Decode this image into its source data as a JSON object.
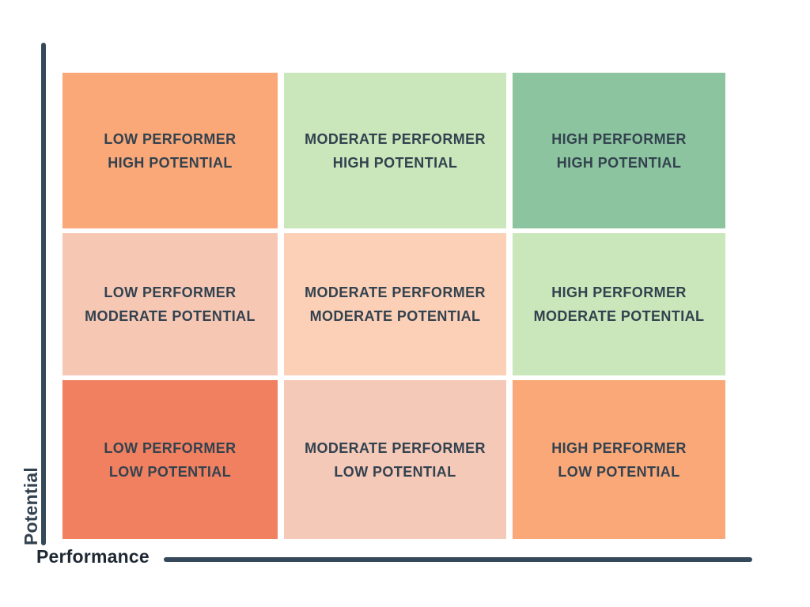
{
  "axes": {
    "x_label": "Performance",
    "y_label": "Potential"
  },
  "colors": {
    "axis_line": "#35495a",
    "x_label_color": "#1e2833",
    "y_label_color": "#33424f",
    "cell_text": "#33424f",
    "background": "#ffffff"
  },
  "matrix": {
    "rows": 3,
    "cols": 3,
    "row_order_top_to_bottom": [
      "HIGH POTENTIAL",
      "MODERATE POTENTIAL",
      "LOW POTENTIAL"
    ],
    "col_order_left_to_right": [
      "LOW PERFORMER",
      "MODERATE PERFORMER",
      "HIGH PERFORMER"
    ],
    "cells": [
      {
        "line1": "LOW PERFORMER",
        "line2": "HIGH POTENTIAL",
        "color": "#faa878"
      },
      {
        "line1": "MODERATE PERFORMER",
        "line2": "HIGH POTENTIAL",
        "color": "#c9e7ba"
      },
      {
        "line1": "HIGH PERFORMER",
        "line2": "HIGH POTENTIAL",
        "color": "#8cc49f"
      },
      {
        "line1": "LOW PERFORMER",
        "line2": "MODERATE POTENTIAL",
        "color": "#f6c8b4"
      },
      {
        "line1": "MODERATE PERFORMER",
        "line2": "MODERATE POTENTIAL",
        "color": "#fbd0b6"
      },
      {
        "line1": "HIGH PERFORMER",
        "line2": "MODERATE POTENTIAL",
        "color": "#c9e7ba"
      },
      {
        "line1": "LOW PERFORMER",
        "line2": "LOW POTENTIAL",
        "color": "#f08060"
      },
      {
        "line1": "MODERATE PERFORMER",
        "line2": "LOW POTENTIAL",
        "color": "#f5c9b8"
      },
      {
        "line1": "HIGH PERFORMER",
        "line2": "LOW POTENTIAL",
        "color": "#faa878"
      }
    ]
  }
}
